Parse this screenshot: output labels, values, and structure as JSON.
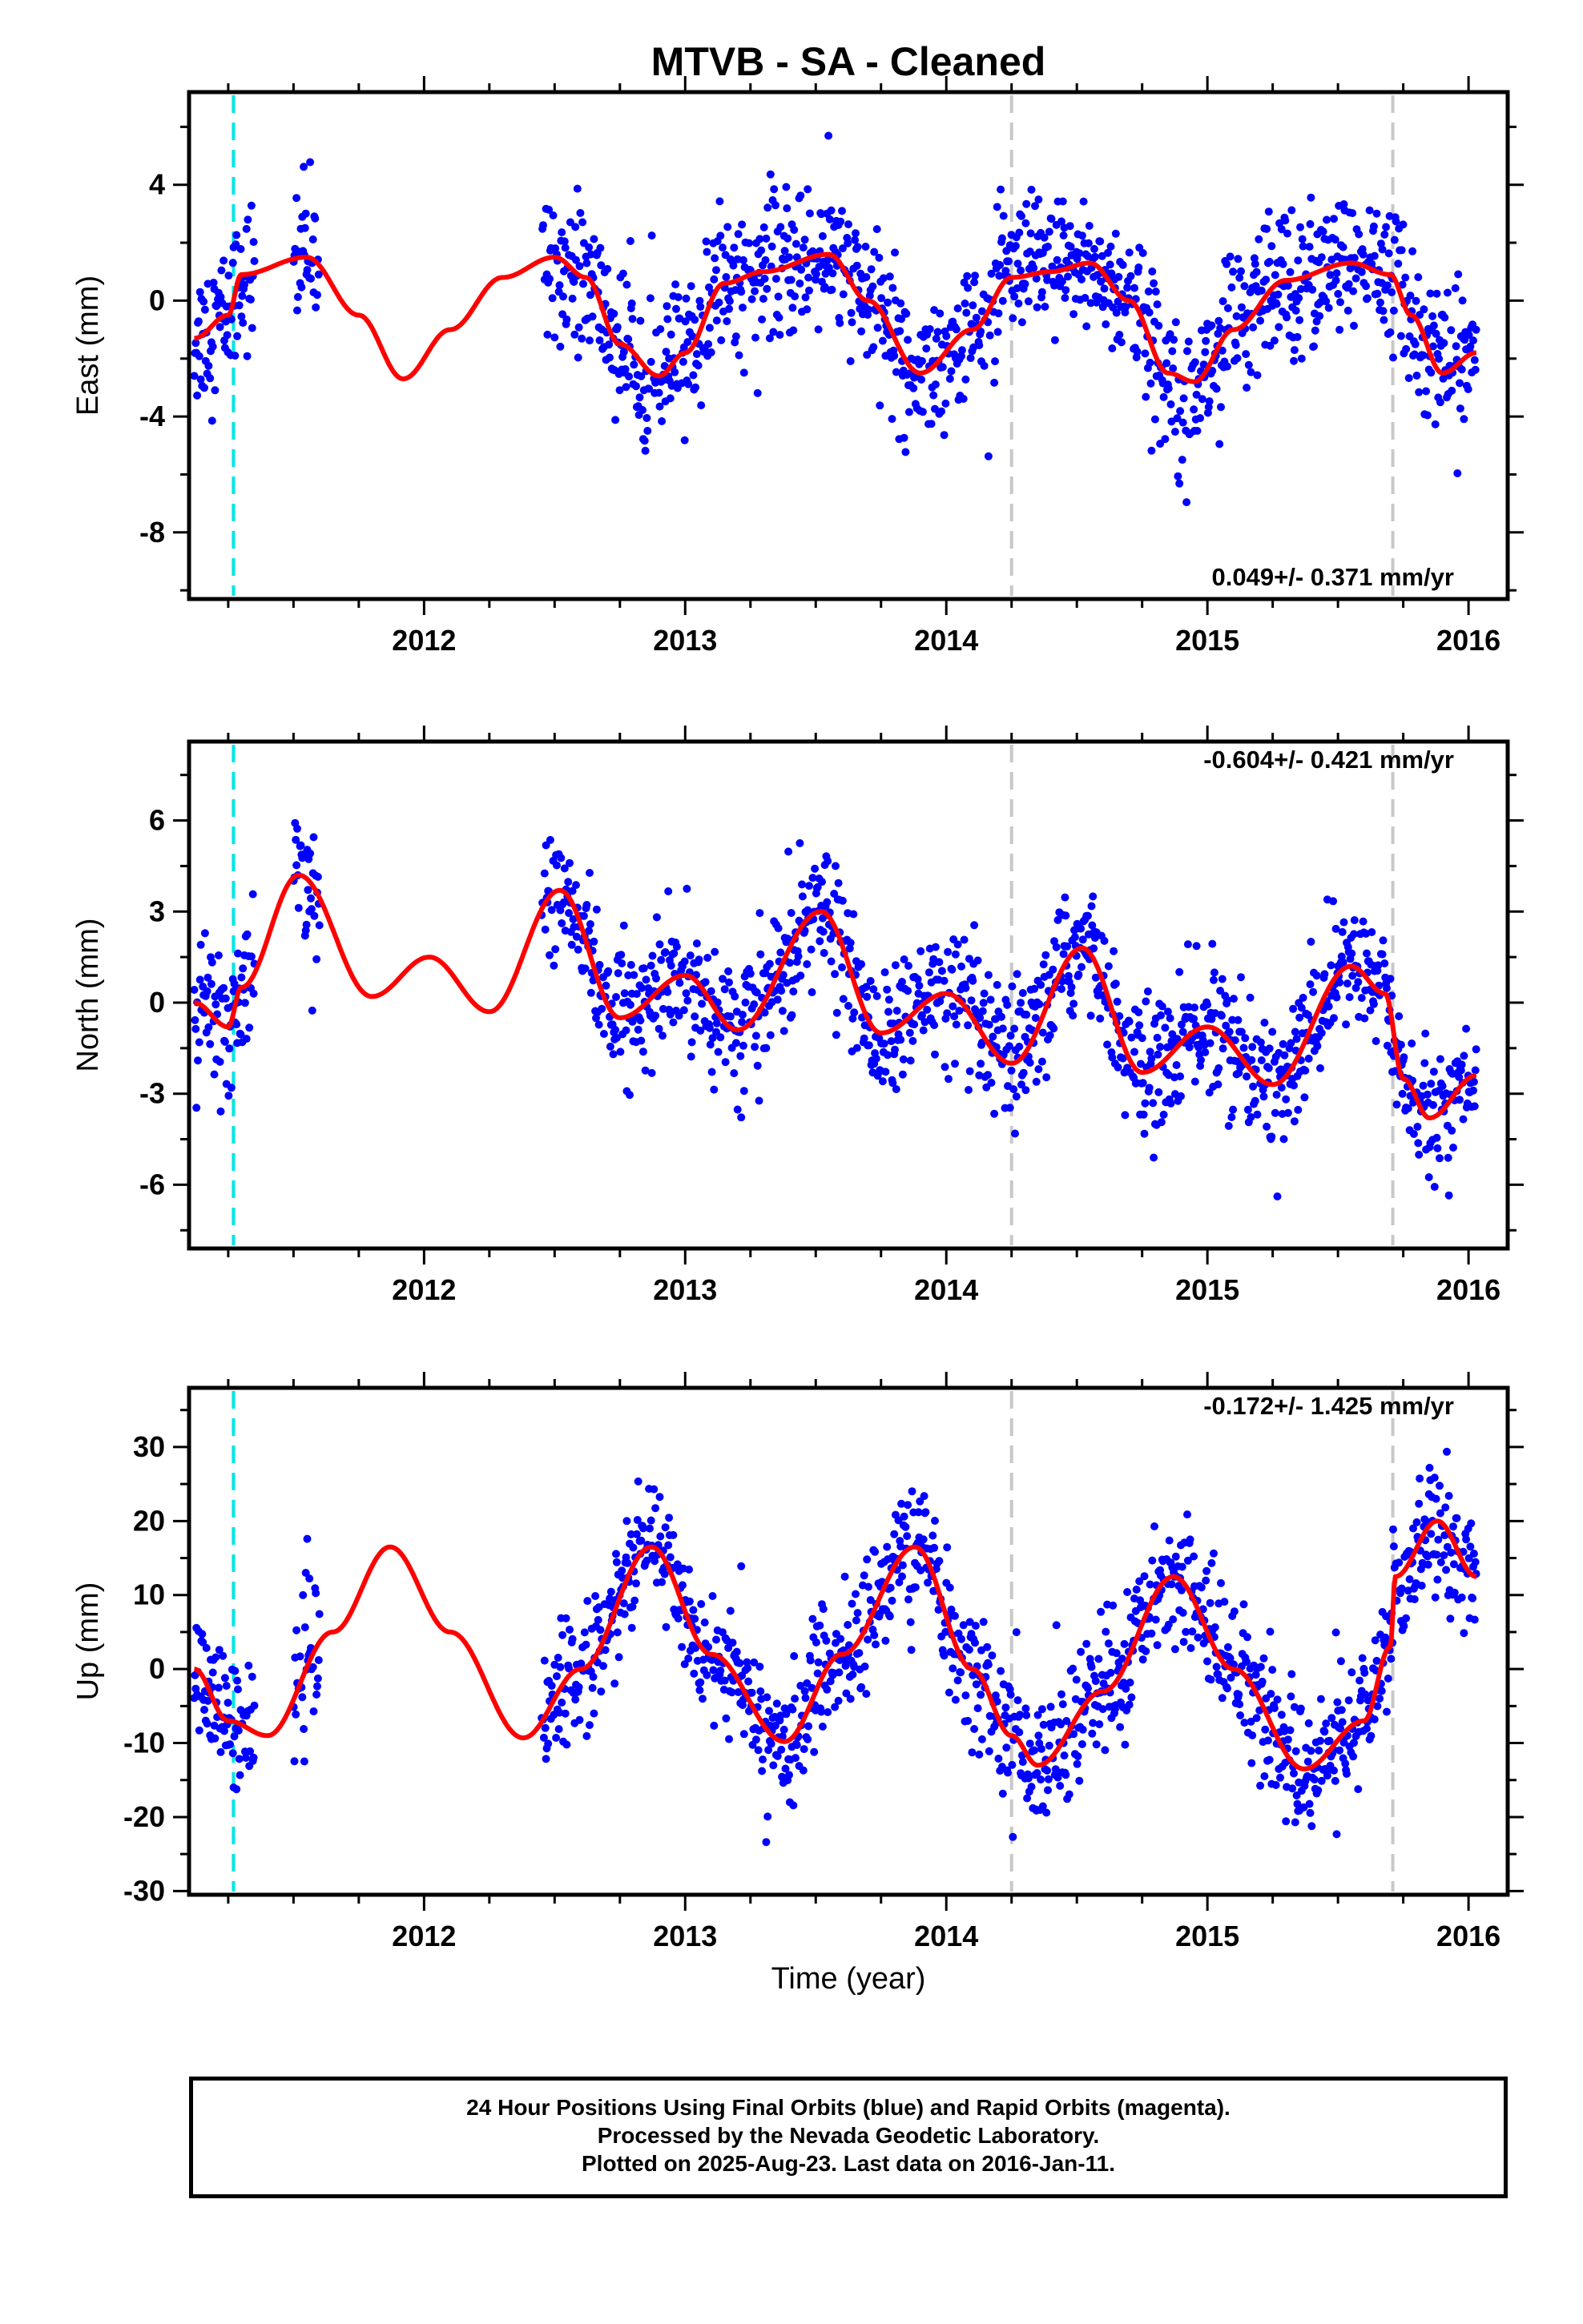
{
  "chart_data": {
    "title": "MTVB  - SA - Cleaned",
    "type": "scatter",
    "xlabel": "Time (year)",
    "xlim": [
      2011.1,
      2016.15
    ],
    "xticks": [
      "2012",
      "2013",
      "2014",
      "2015",
      "2016"
    ],
    "xtick_values": [
      2012,
      2013,
      2014,
      2015,
      2016
    ],
    "x_minor_step": 0.25,
    "data_start": 2011.12,
    "data_end": 2016.03,
    "gaps": [
      [
        2011.35,
        2011.5
      ],
      [
        2011.6,
        2012.45
      ]
    ],
    "vertical_lines": [
      {
        "x": 2011.27,
        "color": "#00e5e5",
        "style": "dashed"
      },
      {
        "x": 2014.25,
        "color": "#c8c8c8",
        "style": "dashed"
      },
      {
        "x": 2015.71,
        "color": "#c8c8c8",
        "style": "dashed"
      }
    ],
    "colors": {
      "points": "#0000ff",
      "model": "#ff0000"
    },
    "panels": [
      {
        "ylabel": "East (mm)",
        "ylim": [
          -10.3,
          7.2
        ],
        "yticks": [
          -8,
          -4,
          0,
          4
        ],
        "y_minor_step": 2,
        "rate_text": "0.049+/- 0.371 mm/yr",
        "rate_position": "bottom-right",
        "noise": 1.25,
        "model": {
          "x": [
            2011.12,
            2011.25,
            2011.3,
            2011.55,
            2011.75,
            2011.92,
            2012.1,
            2012.3,
            2012.5,
            2012.62,
            2012.75,
            2012.9,
            2013.0,
            2013.15,
            2013.3,
            2013.55,
            2013.7,
            2013.9,
            2014.1,
            2014.25,
            2014.4,
            2014.55,
            2014.7,
            2014.85,
            2014.95,
            2015.1,
            2015.3,
            2015.55,
            2015.7,
            2015.78,
            2015.9,
            2016.03
          ],
          "y": [
            -1.3,
            -0.5,
            0.9,
            1.5,
            -0.5,
            -2.7,
            -1.0,
            0.8,
            1.5,
            0.8,
            -1.5,
            -2.6,
            -1.8,
            0.6,
            1.0,
            1.6,
            0.0,
            -2.5,
            -1.0,
            0.8,
            1.0,
            1.3,
            0.0,
            -2.5,
            -2.8,
            -1.0,
            0.7,
            1.3,
            0.9,
            -0.5,
            -2.5,
            -1.8
          ]
        }
      },
      {
        "ylabel": "North (mm)",
        "ylim": [
          -8.1,
          8.6
        ],
        "yticks": [
          -6,
          -3,
          0,
          3,
          6
        ],
        "y_minor_step": 1.5,
        "rate_text": "-0.604+/- 0.421 mm/yr",
        "rate_position": "top-right",
        "noise": 1.1,
        "model": {
          "x": [
            2011.12,
            2011.25,
            2011.3,
            2011.52,
            2011.8,
            2012.02,
            2012.25,
            2012.52,
            2012.75,
            2013.0,
            2013.2,
            2013.52,
            2013.75,
            2014.0,
            2014.25,
            2014.52,
            2014.75,
            2015.0,
            2015.25,
            2015.55,
            2015.68,
            2015.75,
            2015.85,
            2016.03
          ],
          "y": [
            0.0,
            -0.8,
            0.5,
            4.2,
            0.2,
            1.5,
            -0.3,
            3.7,
            -0.5,
            0.9,
            -0.9,
            3.0,
            -1.0,
            0.3,
            -2.0,
            1.8,
            -2.3,
            -0.8,
            -2.7,
            1.2,
            0.3,
            -2.5,
            -3.8,
            -2.4
          ]
        }
      },
      {
        "ylabel": "Up (mm)",
        "ylim": [
          -30.5,
          38
        ],
        "yticks": [
          -30,
          -20,
          -10,
          0,
          10,
          20,
          30
        ],
        "y_minor_step": 5,
        "rate_text": "-0.172+/- 1.425 mm/yr",
        "rate_position": "top-right",
        "noise": 4.5,
        "model": {
          "x": [
            2011.12,
            2011.25,
            2011.4,
            2011.65,
            2011.87,
            2012.1,
            2012.38,
            2012.6,
            2012.87,
            2013.1,
            2013.38,
            2013.6,
            2013.88,
            2014.1,
            2014.25,
            2014.35,
            2014.6,
            2014.87,
            2015.1,
            2015.37,
            2015.6,
            2015.7,
            2015.72,
            2015.88,
            2016.03
          ],
          "y": [
            0.0,
            -7.0,
            -9.0,
            5.0,
            16.5,
            5.0,
            -9.3,
            0.0,
            16.5,
            2.0,
            -9.8,
            2.0,
            16.5,
            0.0,
            -9.0,
            -13.0,
            -3.0,
            12.5,
            0.0,
            -13.5,
            -7.0,
            3.0,
            12.5,
            20.0,
            12.5
          ]
        }
      }
    ]
  },
  "footer": {
    "line1": "24 Hour Positions Using Final Orbits (blue) and Rapid Orbits (magenta).",
    "line2": "Processed by the Nevada Geodetic Laboratory.",
    "line3": "Plotted on 2025-Aug-23. Last data on 2016-Jan-11."
  }
}
